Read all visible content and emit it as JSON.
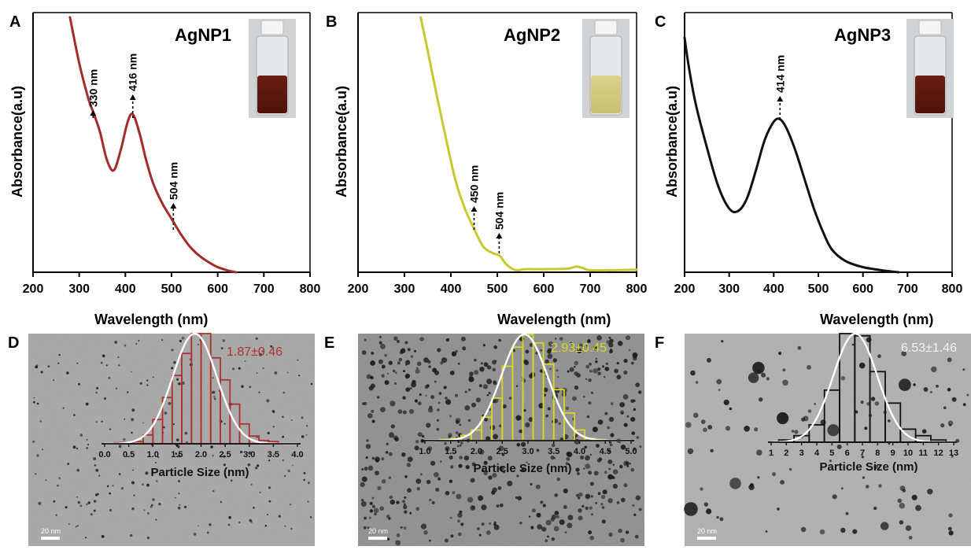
{
  "spectra": [
    {
      "panel": "A",
      "sample": "AgNP1",
      "color": "#a52a2a",
      "xlabel": "Wavelength (nm)",
      "ylabel": "Absorbance(a.u)",
      "xticks": [
        "200",
        "300",
        "400",
        "500",
        "600",
        "700",
        "800"
      ],
      "peaks": [
        {
          "label": "330 nm",
          "x": 330
        },
        {
          "label": "416 nm",
          "x": 416
        },
        {
          "label": "504 nm",
          "x": 504
        }
      ]
    },
    {
      "panel": "B",
      "sample": "AgNP2",
      "color": "#c8c830",
      "xlabel": "Wavelength (nm)",
      "ylabel": "Absorbance(a.u)",
      "xticks": [
        "200",
        "300",
        "400",
        "500",
        "600",
        "700",
        "800"
      ],
      "peaks": [
        {
          "label": "450 nm",
          "x": 450
        },
        {
          "label": "504 nm",
          "x": 504
        }
      ]
    },
    {
      "panel": "C",
      "sample": "AgNP3",
      "color": "#111111",
      "xlabel": "Wavelength (nm)",
      "ylabel": "Absorbance(a.u)",
      "xticks": [
        "200",
        "300",
        "400",
        "500",
        "600",
        "700",
        "800"
      ],
      "peaks": [
        {
          "label": "414 nm",
          "x": 414
        }
      ]
    }
  ],
  "histograms": [
    {
      "panel": "D",
      "stat": "1.87±0.46",
      "color": "#b03030",
      "fit_color": "#ffffff",
      "xlabel": "Particle Size (nm)",
      "xticks": [
        "0.0",
        "0.5",
        "1.0",
        "1.5",
        "2.0",
        "2.5",
        "3.0",
        "3.5",
        "4.0"
      ],
      "scalebar": "20 nm"
    },
    {
      "panel": "E",
      "stat": "2.93±0.45",
      "color": "#d8d820",
      "fit_color": "#ffffff",
      "xlabel": "Particle Size (nm)",
      "xticks": [
        "1.0",
        "1.5",
        "2.0",
        "2.5",
        "3.0",
        "3.5",
        "4.0",
        "4.5",
        "5.0"
      ],
      "scalebar": "20 nm"
    },
    {
      "panel": "F",
      "stat": "6.53±1.46",
      "color": "#111111",
      "fit_color": "#ffffff",
      "xlabel": "Particle Size (nm)",
      "xticks": [
        "1",
        "2",
        "3",
        "4",
        "5",
        "6",
        "7",
        "8",
        "9",
        "10",
        "11",
        "12",
        "13"
      ],
      "scalebar": "20 nm"
    }
  ],
  "chart_data": [
    {
      "type": "line",
      "panel": "A",
      "title": "AgNP1",
      "xlabel": "Wavelength (nm)",
      "ylabel": "Absorbance(a.u)",
      "xlim": [
        200,
        800
      ],
      "ylim": [
        0,
        1
      ],
      "series": [
        {
          "name": "AgNP1",
          "x": [
            280,
            300,
            320,
            330,
            345,
            360,
            375,
            390,
            405,
            416,
            430,
            445,
            460,
            480,
            500,
            520,
            540,
            560,
            580,
            600,
            620,
            640
          ],
          "y": [
            1.0,
            0.82,
            0.68,
            0.63,
            0.55,
            0.44,
            0.4,
            0.48,
            0.59,
            0.62,
            0.55,
            0.44,
            0.35,
            0.27,
            0.21,
            0.15,
            0.1,
            0.065,
            0.04,
            0.02,
            0.008,
            0.0
          ]
        }
      ],
      "peaks_nm": [
        330,
        416,
        504
      ]
    },
    {
      "type": "line",
      "panel": "B",
      "title": "AgNP2",
      "xlabel": "Wavelength (nm)",
      "ylabel": "Absorbance(a.u)",
      "xlim": [
        200,
        800
      ],
      "ylim": [
        0,
        1
      ],
      "series": [
        {
          "name": "AgNP2",
          "x": [
            335,
            350,
            370,
            390,
            410,
            430,
            450,
            470,
            490,
            505,
            520,
            540,
            560,
            600,
            650,
            670,
            685,
            700,
            750,
            800
          ],
          "y": [
            1.0,
            0.87,
            0.69,
            0.52,
            0.36,
            0.25,
            0.17,
            0.1,
            0.075,
            0.065,
            0.03,
            0.008,
            0.012,
            0.012,
            0.014,
            0.022,
            0.016,
            0.008,
            0.008,
            0.01
          ]
        }
      ],
      "peaks_nm": [
        450,
        504
      ]
    },
    {
      "type": "line",
      "panel": "C",
      "title": "AgNP3",
      "xlabel": "Wavelength (nm)",
      "ylabel": "Absorbance(a.u)",
      "xlim": [
        200,
        800
      ],
      "ylim": [
        0,
        1
      ],
      "series": [
        {
          "name": "AgNP3",
          "x": [
            200,
            210,
            225,
            250,
            275,
            300,
            320,
            340,
            360,
            380,
            400,
            414,
            430,
            450,
            470,
            490,
            510,
            530,
            560,
            600,
            650,
            680
          ],
          "y": [
            0.92,
            0.8,
            0.66,
            0.49,
            0.34,
            0.25,
            0.24,
            0.29,
            0.4,
            0.52,
            0.59,
            0.6,
            0.56,
            0.47,
            0.36,
            0.25,
            0.16,
            0.09,
            0.045,
            0.02,
            0.006,
            0.0
          ]
        }
      ],
      "peaks_nm": [
        414
      ]
    },
    {
      "type": "bar",
      "panel": "D",
      "xlabel": "Particle Size (nm)",
      "bin_centers": [
        0.3,
        0.5,
        0.7,
        0.9,
        1.1,
        1.3,
        1.5,
        1.7,
        1.9,
        2.1,
        2.3,
        2.5,
        2.7,
        2.9,
        3.1,
        3.3,
        3.5
      ],
      "values": [
        0.01,
        0.01,
        0.02,
        0.08,
        0.22,
        0.42,
        0.62,
        0.82,
        1.0,
        1.0,
        0.78,
        0.58,
        0.36,
        0.18,
        0.07,
        0.03,
        0.02
      ],
      "fit": {
        "type": "gaussian",
        "mean": 1.87,
        "sd": 0.46
      },
      "xlim": [
        0,
        4
      ]
    },
    {
      "type": "bar",
      "panel": "E",
      "xlabel": "Particle Size (nm)",
      "bin_centers": [
        1.4,
        1.6,
        1.8,
        2.0,
        2.2,
        2.4,
        2.6,
        2.8,
        3.0,
        3.2,
        3.4,
        3.6,
        3.8,
        4.0,
        4.2,
        4.4
      ],
      "values": [
        0.01,
        0.02,
        0.05,
        0.1,
        0.22,
        0.4,
        0.7,
        0.88,
        1.0,
        0.92,
        0.72,
        0.48,
        0.26,
        0.1,
        0.02,
        0.01
      ],
      "fit": {
        "type": "gaussian",
        "mean": 2.93,
        "sd": 0.45
      },
      "xlim": [
        1,
        5
      ]
    },
    {
      "type": "bar",
      "panel": "F",
      "xlabel": "Particle Size (nm)",
      "bin_centers": [
        2,
        3,
        4,
        5,
        6,
        7,
        8,
        9,
        10,
        11,
        12
      ],
      "values": [
        0.02,
        0.06,
        0.16,
        0.48,
        1.0,
        0.98,
        0.65,
        0.36,
        0.12,
        0.06,
        0.02
      ],
      "fit": {
        "type": "gaussian",
        "mean": 6.53,
        "sd": 1.46
      },
      "xlim": [
        1,
        13
      ]
    }
  ]
}
